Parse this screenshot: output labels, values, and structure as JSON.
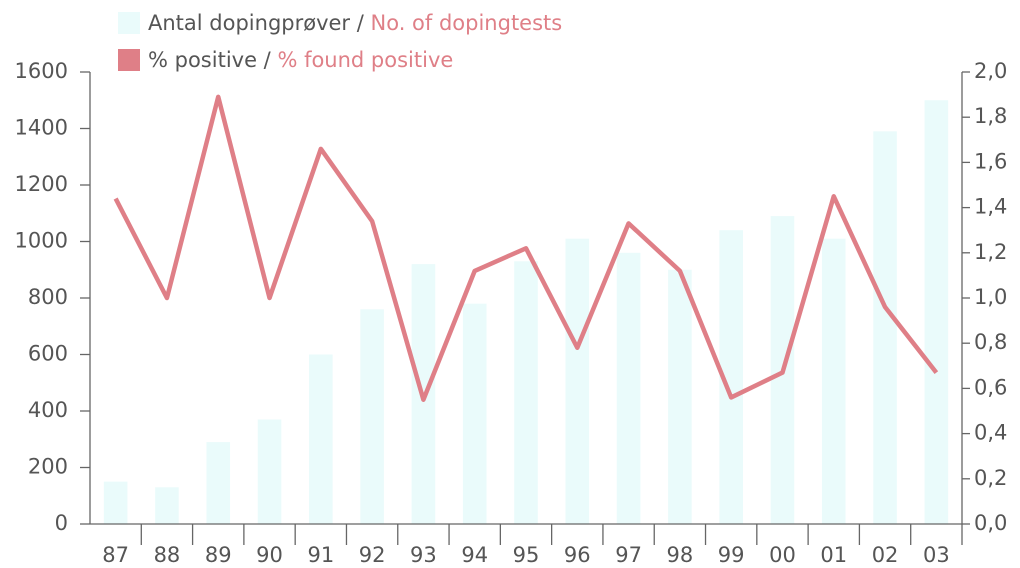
{
  "chart_data": {
    "type": "bar-line",
    "categories": [
      "87",
      "88",
      "89",
      "90",
      "91",
      "92",
      "93",
      "94",
      "95",
      "96",
      "97",
      "98",
      "99",
      "00",
      "01",
      "02",
      "03"
    ],
    "series": [
      {
        "name": "Antal dopingprøver / No. of dopingtests",
        "type": "bar",
        "color": "#eafbfb",
        "values": [
          150,
          130,
          290,
          370,
          600,
          760,
          920,
          780,
          930,
          1010,
          960,
          900,
          1040,
          1090,
          1010,
          1390,
          1500
        ]
      },
      {
        "name": "% positive / % found positive",
        "type": "line",
        "axis": "y2",
        "color": "#df7f87",
        "values": [
          1.44,
          1.0,
          1.89,
          1.0,
          1.66,
          1.34,
          0.55,
          1.12,
          1.22,
          0.78,
          1.33,
          1.12,
          0.56,
          0.67,
          1.45,
          0.96,
          0.67
        ]
      }
    ],
    "ylim": [
      0,
      1600
    ],
    "yticks": [
      0,
      200,
      400,
      600,
      800,
      1000,
      1200,
      1400,
      1600
    ],
    "y2lim": [
      0,
      2
    ],
    "y2ticks": [
      {
        "value": 0,
        "label": "0,0"
      },
      {
        "value": 0.2,
        "label": "0,2"
      },
      {
        "value": 0.4,
        "label": "0,4"
      },
      {
        "value": 0.6,
        "label": "0,6"
      },
      {
        "value": 0.8,
        "label": "0,8"
      },
      {
        "value": 1,
        "label": "1,0"
      },
      {
        "value": 1.2,
        "label": "1,2"
      },
      {
        "value": 1.4,
        "label": "1,4"
      },
      {
        "value": 1.6,
        "label": "1,6"
      },
      {
        "value": 1.8,
        "label": "1,8"
      },
      {
        "value": 2,
        "label": "2,0"
      }
    ]
  }
}
